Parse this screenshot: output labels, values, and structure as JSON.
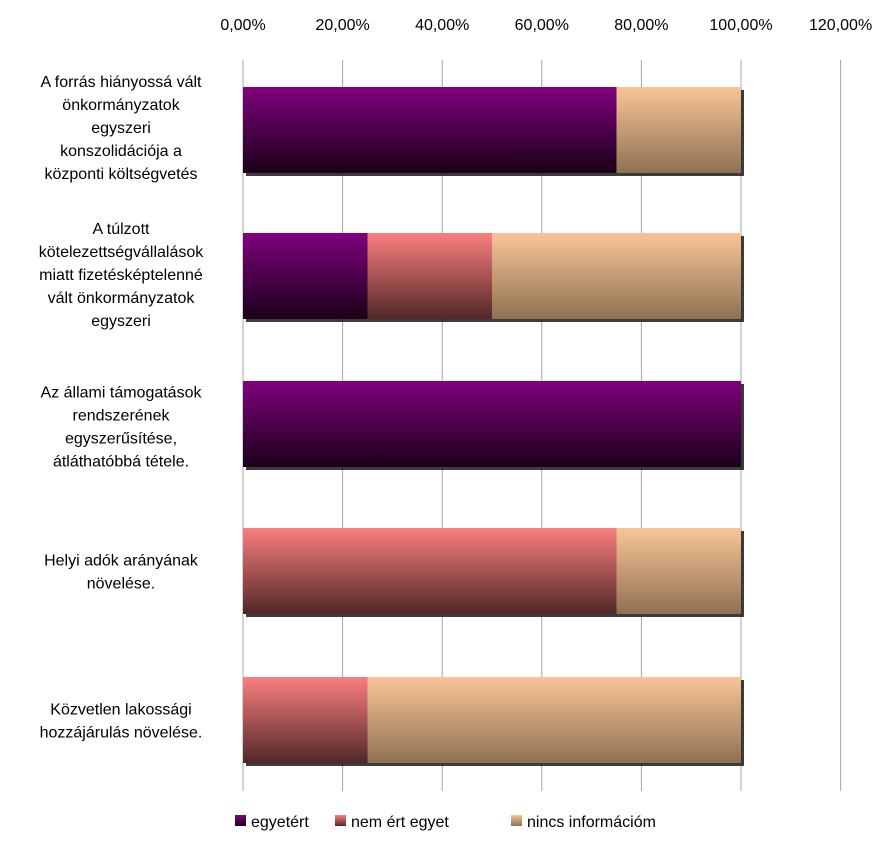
{
  "chart_data": {
    "type": "bar",
    "orientation": "horizontal",
    "stacked": true,
    "categories": [
      "A forrás hiányossá vált önkormányzatok egyszeri konszolidációja a központi költségvetés",
      "A túlzott kötelezettségvállalások miatt fizetésképtelenné vált önkormányzatok egyszeri",
      "Az állami támogatások rendszerének egyszerűsítése, átláthatóbbá tétele.",
      "Helyi adók arányának növelése.",
      "Közvetlen lakossági hozzájárulás növelése."
    ],
    "category_lines": [
      [
        "A forrás hiányossá vált",
        "önkormányzatok",
        "egyszeri",
        "konszolidációja a",
        "központi költségvetés"
      ],
      [
        "A túlzott",
        "kötelezettségvállalások",
        "miatt fizetésképtelenné",
        "vált önkormányzatok",
        "egyszeri"
      ],
      [
        "Az állami támogatások",
        "rendszerének",
        "egyszerűsítése,",
        "átláthatóbbá tétele."
      ],
      [
        "Helyi adók arányának",
        "növelése."
      ],
      [
        "Közvetlen lakossági",
        "hozzájárulás növelése."
      ]
    ],
    "series": [
      {
        "name": "egyetért",
        "values": [
          75,
          25,
          100,
          0,
          0
        ],
        "color_top": "#80007f",
        "color_bottom": "#1a0018"
      },
      {
        "name": "nem ért egyet",
        "values": [
          0,
          25,
          0,
          75,
          25
        ],
        "color_top": "#fb7f7f",
        "color_bottom": "#522727"
      },
      {
        "name": "nincs információm",
        "values": [
          25,
          50,
          0,
          25,
          75
        ],
        "color_top": "#f9c597",
        "color_bottom": "#8f7152"
      }
    ],
    "x_ticks": [
      "0,00%",
      "20,00%",
      "40,00%",
      "60,00%",
      "80,00%",
      "100,00%",
      "120,00%"
    ],
    "xlim": [
      0,
      120
    ],
    "x_axis_position": "top",
    "grid": true,
    "legend_position": "bottom",
    "title": "",
    "xlabel": "",
    "ylabel": ""
  }
}
